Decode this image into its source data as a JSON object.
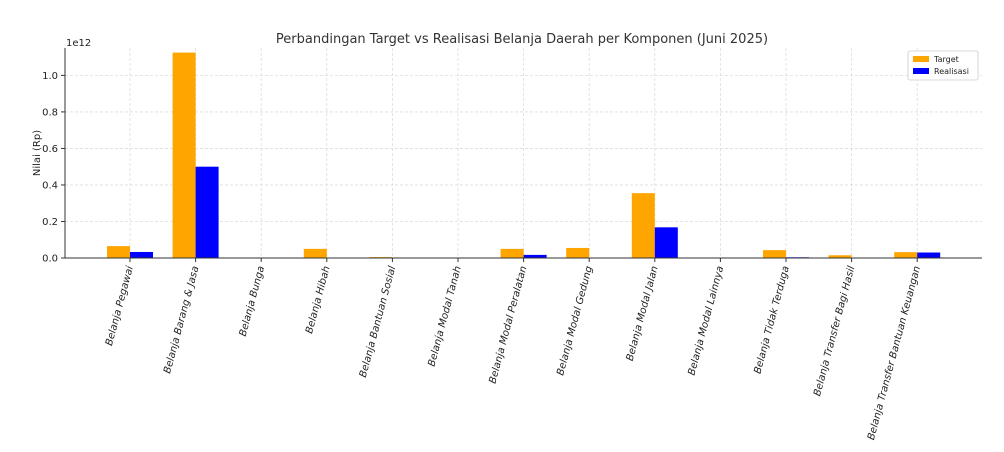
{
  "chart_data": {
    "type": "bar",
    "title": "Perbandingan Target vs Realisasi Belanja Daerah per Komponen (Juni 2025)",
    "ylabel": "Nilai (Rp)",
    "xlabel": "",
    "y_offset_label": "1e12",
    "ylim": [
      0,
      1.15
    ],
    "yticks": [
      0.0,
      0.2,
      0.4,
      0.6,
      0.8,
      1.0
    ],
    "ytick_labels": [
      "0.0",
      "0.2",
      "0.4",
      "0.6",
      "0.8",
      "1.0"
    ],
    "grid": true,
    "legend_position": "top-right",
    "categories": [
      "Belanja Pegawai",
      "Belanja Barang & Jasa",
      "Belanja Bunga",
      "Belanja Hibah",
      "Belanja Bantuan Sosial",
      "Belanja Modal Tanah",
      "Belanja Modal Peralatan",
      "Belanja Modal Gedung",
      "Belanja Modal Jalan",
      "Belanja Modal Lainnya",
      "Belanja Tidak Terduga",
      "Belanja Transfer Bagi Hasil",
      "Belanja Transfer Bantuan Keuangan"
    ],
    "series": [
      {
        "name": "Target",
        "color": "#ffa500",
        "values": [
          0.065,
          1.125,
          0.0,
          0.05,
          0.005,
          0.0,
          0.05,
          0.055,
          0.355,
          0.0,
          0.043,
          0.015,
          0.032
        ]
      },
      {
        "name": "Realisasi",
        "color": "#0000ff",
        "values": [
          0.033,
          0.5,
          0.0,
          0.0,
          0.0,
          0.0,
          0.017,
          0.0,
          0.168,
          0.0,
          0.004,
          0.0,
          0.03
        ]
      }
    ]
  }
}
